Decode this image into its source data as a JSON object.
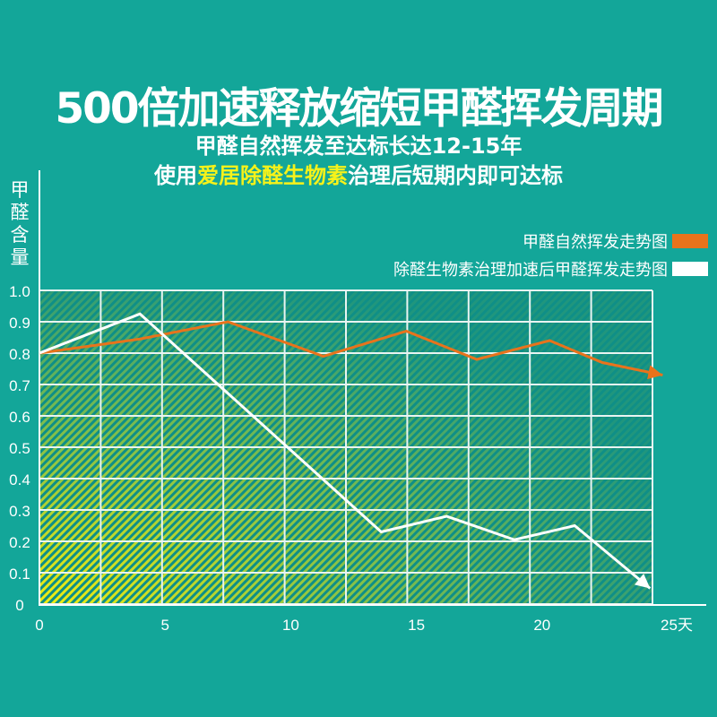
{
  "header": {
    "title": "500倍加速释放缩短甲醛挥发周期",
    "subtitle1": "甲醛自然挥发至达标长达12-15年",
    "subtitle2_pre": "使用",
    "subtitle2_highlight": "爱居除醛生物素",
    "subtitle2_post": "治理后短期内即可达标"
  },
  "chart_data": {
    "type": "line",
    "title": "500倍加速释放缩短甲醛挥发周期",
    "ylabel": "甲醛含量",
    "xlabel": "天",
    "xlim": [
      0,
      25
    ],
    "ylim": [
      0,
      1.0
    ],
    "x_ticks": [
      "0",
      "5",
      "10",
      "15",
      "20",
      "25天"
    ],
    "y_ticks": [
      "0",
      "0.1",
      "0.2",
      "0.3",
      "0.4",
      "0.5",
      "0.6",
      "0.7",
      "0.8",
      "0.9",
      "1.0"
    ],
    "grid": true,
    "legend_position": "top-right",
    "series": [
      {
        "name": "甲醛自然挥发走势图",
        "color": "#e8731c",
        "x": [
          0,
          4,
          7.5,
          11.3,
          14.6,
          17.4,
          20.3,
          22.4,
          24.8
        ],
        "y": [
          0.8,
          0.845,
          0.9,
          0.79,
          0.87,
          0.78,
          0.84,
          0.77,
          0.73
        ]
      },
      {
        "name": "除醛生物素治理加速后甲醛挥发走势图",
        "color": "#ffffff",
        "x": [
          0,
          4.0,
          13.6,
          16.2,
          18.9,
          21.3,
          24.3
        ],
        "y": [
          0.8,
          0.925,
          0.23,
          0.28,
          0.205,
          0.25,
          0.05
        ]
      }
    ]
  },
  "colors": {
    "background": "#13a699",
    "highlight": "#f6f21a",
    "hatch": "#f2ee10"
  }
}
